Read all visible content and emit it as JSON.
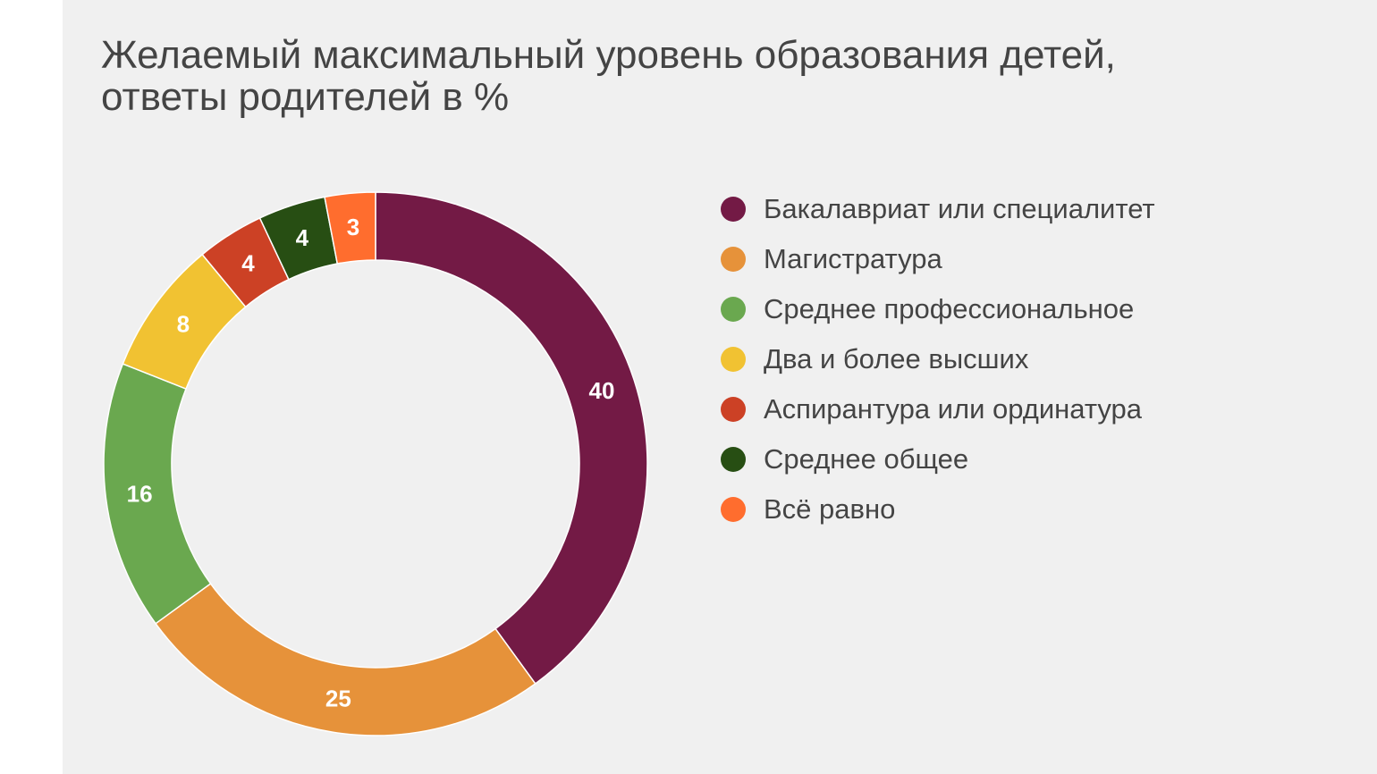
{
  "chart_data": {
    "type": "pie",
    "title_lines": [
      "Желаемый максимальный уровень образования детей,",
      "ответы родителей в %"
    ],
    "donut": true,
    "legend_position": "right",
    "slices": [
      {
        "label": "Бакалавриат или специалитет",
        "value": 40,
        "color": "#731a45"
      },
      {
        "label": "Магистратура",
        "value": 25,
        "color": "#e6923a"
      },
      {
        "label": "Среднее профессиональное",
        "value": 16,
        "color": "#6aa84f"
      },
      {
        "label": "Два и более высших",
        "value": 8,
        "color": "#f1c232"
      },
      {
        "label": "Аспирантура или ординатура",
        "value": 4,
        "color": "#cc4125"
      },
      {
        "label": "Среднее общее",
        "value": 4,
        "color": "#274e13"
      },
      {
        "label": "Всё равно",
        "value": 3,
        "color": "#ff6d2e"
      }
    ]
  }
}
